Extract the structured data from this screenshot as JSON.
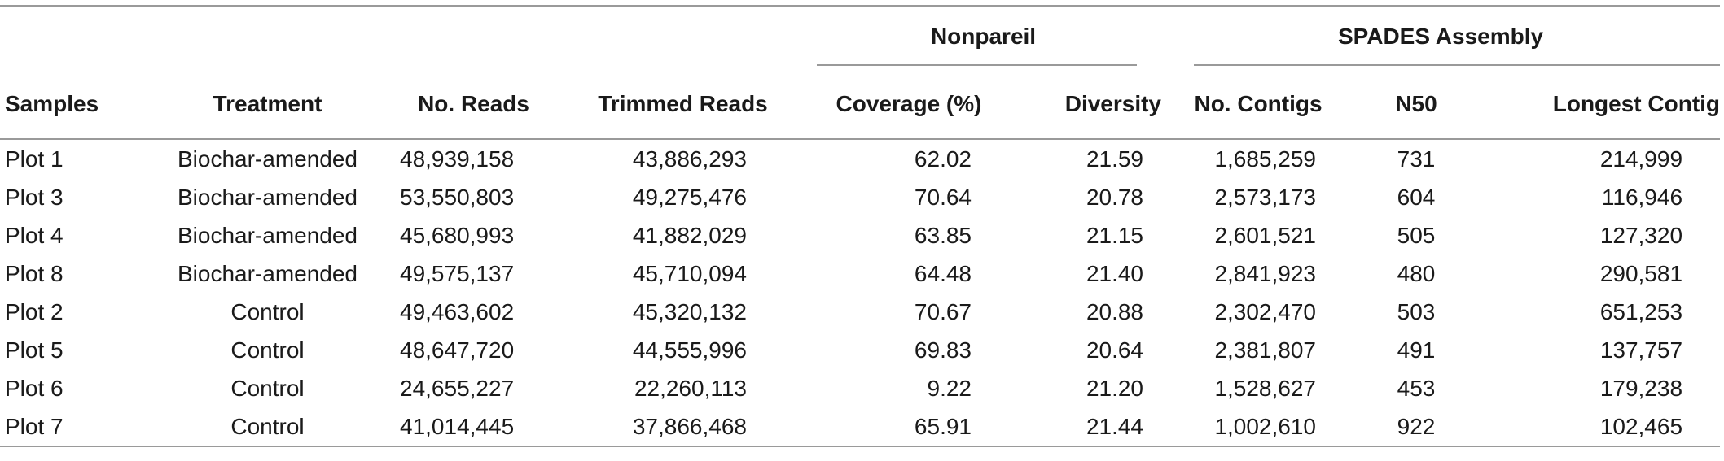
{
  "table": {
    "groups": {
      "nonpareil": "Nonpareil",
      "spades": "SPADES Assembly"
    },
    "headers": {
      "samples": "Samples",
      "treatment": "Treatment",
      "no_reads": "No. Reads",
      "trimmed_reads": "Trimmed Reads",
      "coverage": "Coverage (%)",
      "diversity": "Diversity",
      "no_contigs": "No. Contigs",
      "n50": "N50",
      "longest_contig": "Longest Contig"
    },
    "rows": [
      {
        "sample": "Plot 1",
        "treatment": "Biochar-amended",
        "reads": "48,939,158",
        "trimmed": "43,886,293",
        "coverage": "62.02",
        "diversity": "21.59",
        "contigs": "1,685,259",
        "n50": "731",
        "longest": "214,999"
      },
      {
        "sample": "Plot 3",
        "treatment": "Biochar-amended",
        "reads": "53,550,803",
        "trimmed": "49,275,476",
        "coverage": "70.64",
        "diversity": "20.78",
        "contigs": "2,573,173",
        "n50": "604",
        "longest": "116,946"
      },
      {
        "sample": "Plot 4",
        "treatment": "Biochar-amended",
        "reads": "45,680,993",
        "trimmed": "41,882,029",
        "coverage": "63.85",
        "diversity": "21.15",
        "contigs": "2,601,521",
        "n50": "505",
        "longest": "127,320"
      },
      {
        "sample": "Plot 8",
        "treatment": "Biochar-amended",
        "reads": "49,575,137",
        "trimmed": "45,710,094",
        "coverage": "64.48",
        "diversity": "21.40",
        "contigs": "2,841,923",
        "n50": "480",
        "longest": "290,581"
      },
      {
        "sample": "Plot 2",
        "treatment": "Control",
        "reads": "49,463,602",
        "trimmed": "45,320,132",
        "coverage": "70.67",
        "diversity": "20.88",
        "contigs": "2,302,470",
        "n50": "503",
        "longest": "651,253"
      },
      {
        "sample": "Plot 5",
        "treatment": "Control",
        "reads": "48,647,720",
        "trimmed": "44,555,996",
        "coverage": "69.83",
        "diversity": "20.64",
        "contigs": "2,381,807",
        "n50": "491",
        "longest": "137,757"
      },
      {
        "sample": "Plot 6",
        "treatment": "Control",
        "reads": "24,655,227",
        "trimmed": "22,260,113",
        "coverage": "9.22",
        "diversity": "21.20",
        "contigs": "1,528,627",
        "n50": "453",
        "longest": "179,238"
      },
      {
        "sample": "Plot 7",
        "treatment": "Control",
        "reads": "41,014,445",
        "trimmed": "37,866,468",
        "coverage": "65.91",
        "diversity": "21.44",
        "contigs": "1,002,610",
        "n50": "922",
        "longest": "102,465"
      }
    ]
  }
}
